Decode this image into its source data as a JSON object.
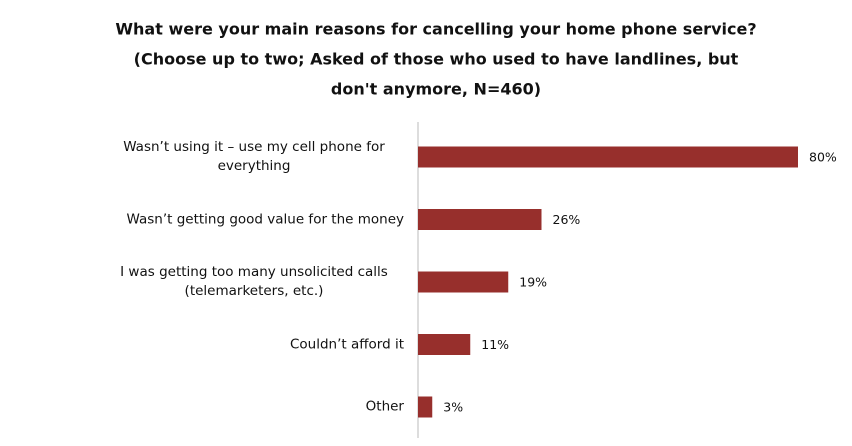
{
  "chart_data": {
    "type": "bar",
    "orientation": "horizontal",
    "title": [
      "What were your main reasons for cancelling your home phone service?",
      "(Choose up to two; Asked of those who used to have landlines, but",
      "don't anymore, N=460)"
    ],
    "categories": [
      "Wasn’t using it – use my cell phone for everything",
      "Wasn’t getting good value for the money",
      "I was getting too many unsolicited calls (telemarketers, etc.)",
      "Couldn’t afford it",
      "Other"
    ],
    "values": [
      80,
      26,
      19,
      11,
      3
    ],
    "value_labels": [
      "80%",
      "26%",
      "19%",
      "11%",
      "3%"
    ],
    "color": "#972f2c"
  }
}
